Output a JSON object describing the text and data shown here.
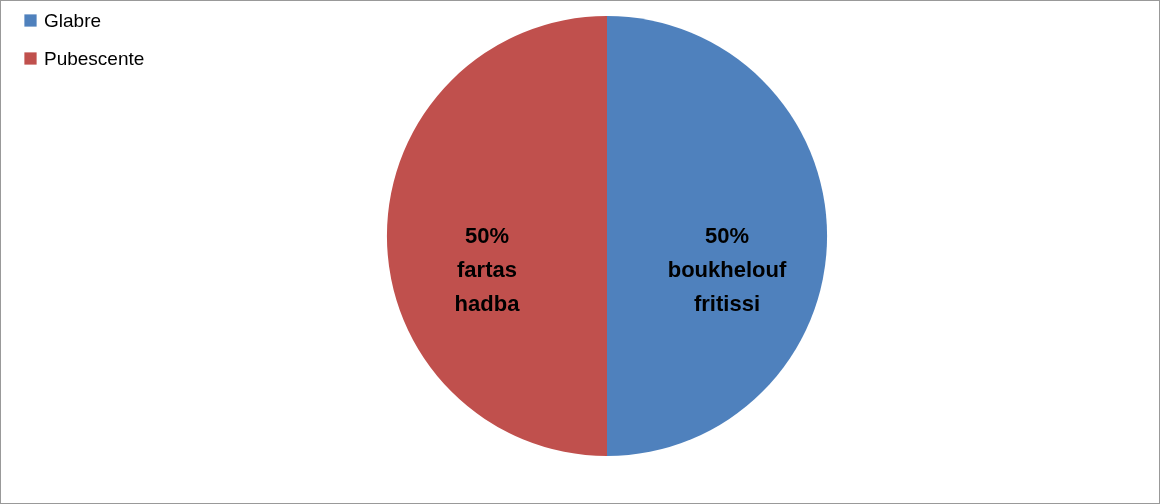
{
  "chart_data": {
    "type": "pie",
    "categories": [
      "Glabre",
      "Pubescente"
    ],
    "values": [
      50,
      50
    ],
    "colors": [
      "#4f81bd",
      "#c0504d"
    ],
    "value_labels": [
      "50%\nboukhelouf\nfritissi",
      "50%\nfartas\nhadba"
    ],
    "legend": "left"
  }
}
